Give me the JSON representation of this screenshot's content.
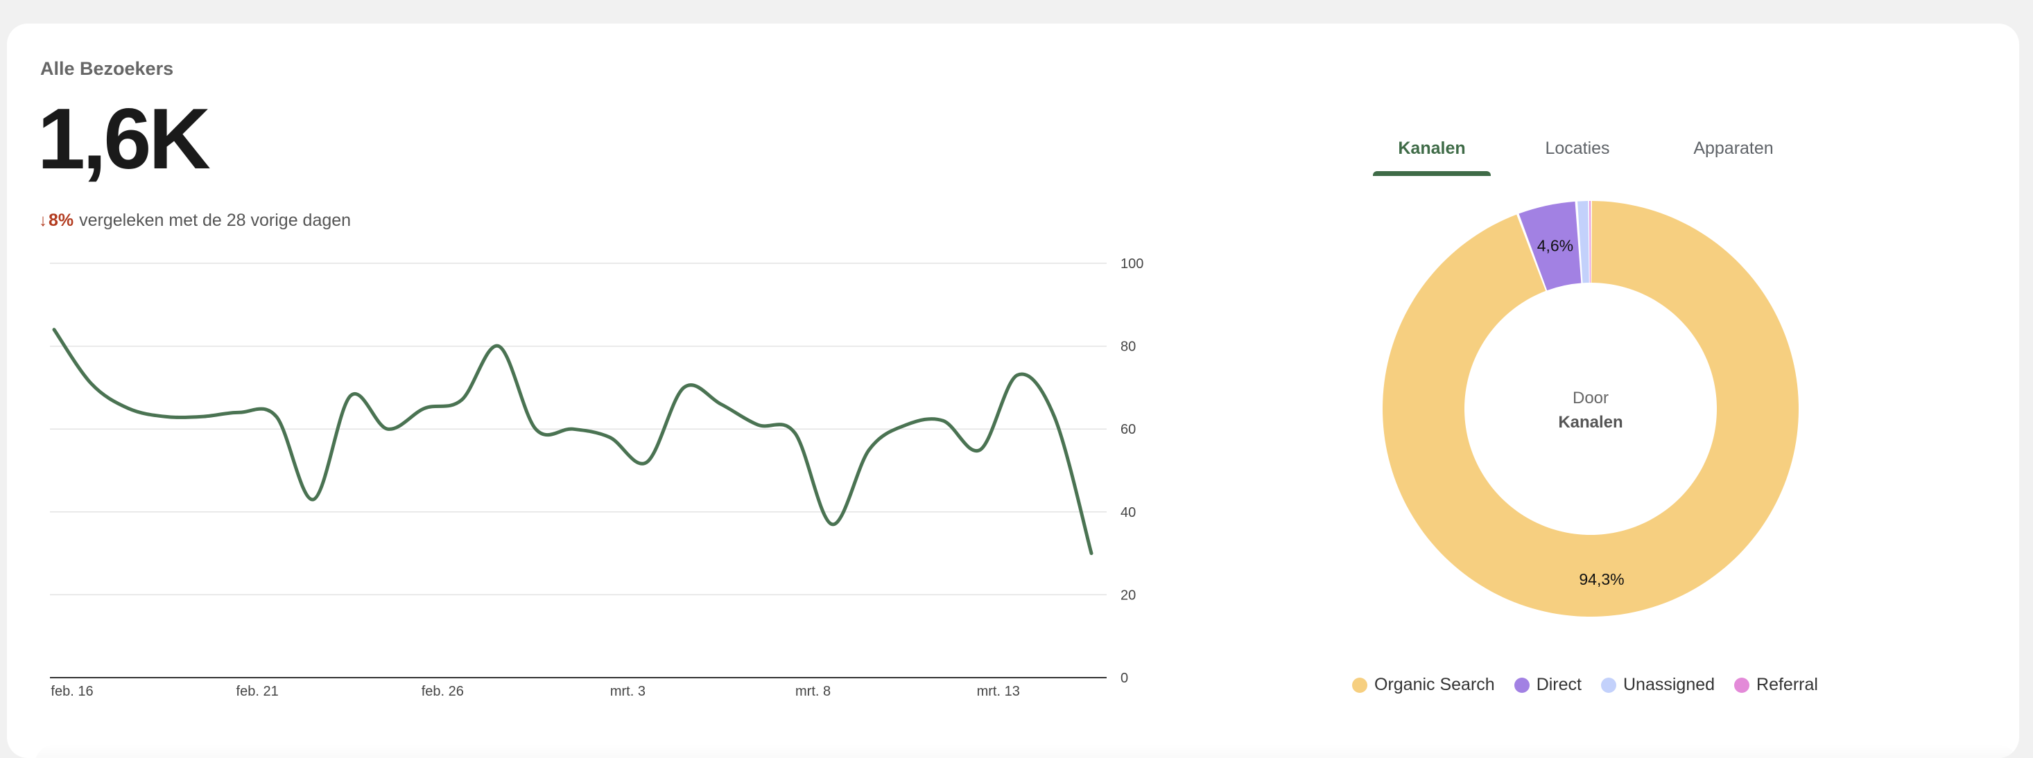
{
  "card": {
    "title": "Alle Bezoekers",
    "total": "1,6K",
    "change_arrow": "↓",
    "change_pct": "8%",
    "change_text": "vergeleken met de 28 vorige dagen"
  },
  "tabs": [
    {
      "label": "Kanalen",
      "active": true
    },
    {
      "label": "Locaties",
      "active": false
    },
    {
      "label": "Apparaten",
      "active": false
    }
  ],
  "donut": {
    "center_line1": "Door",
    "center_line2": "Kanalen"
  },
  "colors": {
    "line": "#4a7352",
    "accent": "#3f6b47",
    "negative": "#b23b1f",
    "organic": "#f6cf80",
    "direct": "#a281e3",
    "unassigned": "#c3d1fb",
    "referral": "#e38ad8"
  },
  "chart_data": [
    {
      "type": "line",
      "series": [
        {
          "values": [
            84,
            71,
            65,
            63,
            63,
            64,
            63,
            43,
            68,
            60,
            65,
            67,
            80,
            60,
            60,
            58,
            52,
            70,
            66,
            61,
            59,
            37,
            55,
            61,
            62,
            55,
            73,
            63,
            30
          ]
        }
      ],
      "x_ticks": [
        "feb. 16",
        "feb. 21",
        "feb. 26",
        "mrt. 3",
        "mrt. 8",
        "mrt. 13"
      ],
      "y_ticks": [
        "0",
        "20",
        "40",
        "60",
        "80",
        "100"
      ],
      "ylim": [
        0,
        100
      ],
      "grid": true
    },
    {
      "type": "pie",
      "categories": [
        "Organic Search",
        "Direct",
        "Unassigned",
        "Referral"
      ],
      "values": [
        94.3,
        4.6,
        1.0,
        0.1
      ],
      "labels": [
        "94,3%",
        "4,6%",
        "",
        ""
      ],
      "legend": "bottom"
    }
  ]
}
